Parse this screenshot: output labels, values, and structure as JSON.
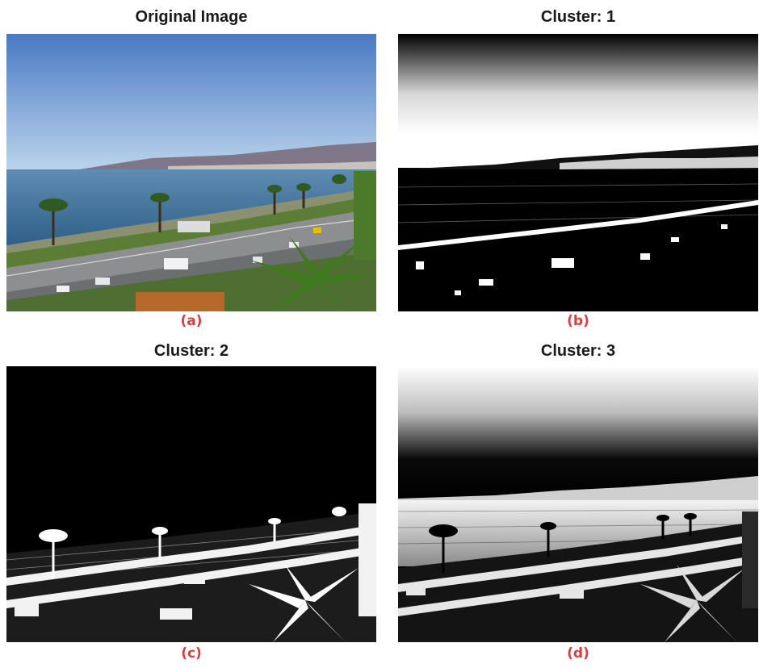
{
  "figure": {
    "panels": [
      {
        "title": "Original Image",
        "label": "(a)",
        "content": "photo",
        "icon": "coastal-city-photo"
      },
      {
        "title": "Cluster: 1",
        "label": "(b)",
        "content": "cluster1",
        "icon": "cluster-1-mask"
      },
      {
        "title": "Cluster: 2",
        "label": "(c)",
        "content": "cluster2",
        "icon": "cluster-2-mask"
      },
      {
        "title": "Cluster: 3",
        "label": "(d)",
        "content": "cluster3",
        "icon": "cluster-3-mask"
      }
    ],
    "colors": {
      "label": "#e23a3a",
      "sky_top": "#4f7fc8",
      "sky_bottom": "#b6d0ea",
      "sea": "#3f6f9a",
      "vegetation": "#4f7a2a"
    }
  }
}
